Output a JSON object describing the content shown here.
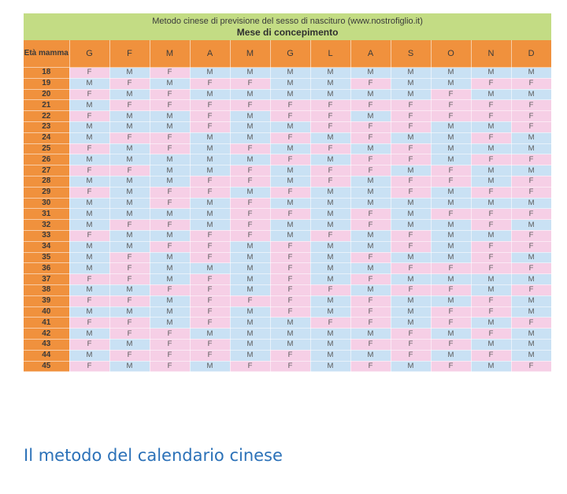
{
  "table": {
    "title": "Metodo cinese di previsione del sesso di nascituro (www.nostrofiglio.it)",
    "subtitle": "Mese di concepimento",
    "age_header": "Età mamma",
    "months": [
      "G",
      "F",
      "M",
      "A",
      "M",
      "G",
      "L",
      "A",
      "S",
      "O",
      "N",
      "D"
    ],
    "rows": [
      {
        "age": "18",
        "cells": [
          "F",
          "M",
          "F",
          "M",
          "M",
          "M",
          "M",
          "M",
          "M",
          "M",
          "M",
          "M"
        ]
      },
      {
        "age": "19",
        "cells": [
          "M",
          "F",
          "M",
          "F",
          "F",
          "M",
          "M",
          "F",
          "M",
          "M",
          "F",
          "F"
        ]
      },
      {
        "age": "20",
        "cells": [
          "F",
          "M",
          "F",
          "M",
          "M",
          "M",
          "M",
          "M",
          "M",
          "F",
          "M",
          "M"
        ]
      },
      {
        "age": "21",
        "cells": [
          "M",
          "F",
          "F",
          "F",
          "F",
          "F",
          "F",
          "F",
          "F",
          "F",
          "F",
          "F"
        ]
      },
      {
        "age": "22",
        "cells": [
          "F",
          "M",
          "M",
          "F",
          "M",
          "F",
          "F",
          "M",
          "F",
          "F",
          "F",
          "F"
        ]
      },
      {
        "age": "23",
        "cells": [
          "M",
          "M",
          "M",
          "F",
          "M",
          "M",
          "F",
          "F",
          "F",
          "M",
          "M",
          "F"
        ]
      },
      {
        "age": "24",
        "cells": [
          "M",
          "F",
          "F",
          "M",
          "M",
          "F",
          "M",
          "F",
          "M",
          "M",
          "F",
          "M"
        ]
      },
      {
        "age": "25",
        "cells": [
          "F",
          "M",
          "F",
          "M",
          "F",
          "M",
          "F",
          "M",
          "F",
          "M",
          "M",
          "M"
        ]
      },
      {
        "age": "26",
        "cells": [
          "M",
          "M",
          "M",
          "M",
          "M",
          "F",
          "M",
          "F",
          "F",
          "M",
          "F",
          "F"
        ]
      },
      {
        "age": "27",
        "cells": [
          "F",
          "F",
          "M",
          "M",
          "F",
          "M",
          "F",
          "F",
          "M",
          "F",
          "M",
          "M"
        ]
      },
      {
        "age": "28",
        "cells": [
          "M",
          "M",
          "M",
          "F",
          "F",
          "M",
          "F",
          "M",
          "F",
          "F",
          "M",
          "F"
        ]
      },
      {
        "age": "29",
        "cells": [
          "F",
          "M",
          "F",
          "F",
          "M",
          "F",
          "M",
          "M",
          "F",
          "M",
          "F",
          "F"
        ]
      },
      {
        "age": "30",
        "cells": [
          "M",
          "M",
          "F",
          "M",
          "F",
          "M",
          "M",
          "M",
          "M",
          "M",
          "M",
          "M"
        ]
      },
      {
        "age": "31",
        "cells": [
          "M",
          "M",
          "M",
          "M",
          "F",
          "F",
          "M",
          "F",
          "M",
          "F",
          "F",
          "F"
        ]
      },
      {
        "age": "32",
        "cells": [
          "M",
          "F",
          "F",
          "M",
          "F",
          "M",
          "M",
          "F",
          "M",
          "M",
          "F",
          "M"
        ]
      },
      {
        "age": "33",
        "cells": [
          "F",
          "M",
          "M",
          "F",
          "F",
          "M",
          "F",
          "M",
          "F",
          "M",
          "M",
          "F"
        ]
      },
      {
        "age": "34",
        "cells": [
          "M",
          "M",
          "F",
          "F",
          "M",
          "F",
          "M",
          "M",
          "F",
          "M",
          "F",
          "F"
        ]
      },
      {
        "age": "35",
        "cells": [
          "M",
          "F",
          "M",
          "F",
          "M",
          "F",
          "M",
          "F",
          "M",
          "M",
          "F",
          "M"
        ]
      },
      {
        "age": "36",
        "cells": [
          "M",
          "F",
          "M",
          "M",
          "M",
          "F",
          "M",
          "M",
          "F",
          "F",
          "F",
          "F"
        ]
      },
      {
        "age": "37",
        "cells": [
          "F",
          "F",
          "M",
          "F",
          "M",
          "F",
          "M",
          "F",
          "M",
          "M",
          "M",
          "M"
        ]
      },
      {
        "age": "38",
        "cells": [
          "M",
          "M",
          "F",
          "F",
          "M",
          "F",
          "F",
          "M",
          "F",
          "F",
          "M",
          "F"
        ]
      },
      {
        "age": "39",
        "cells": [
          "F",
          "F",
          "M",
          "F",
          "F",
          "F",
          "M",
          "F",
          "M",
          "M",
          "F",
          "M"
        ]
      },
      {
        "age": "40",
        "cells": [
          "M",
          "M",
          "M",
          "F",
          "M",
          "F",
          "M",
          "F",
          "M",
          "F",
          "F",
          "M"
        ]
      },
      {
        "age": "41",
        "cells": [
          "F",
          "F",
          "M",
          "F",
          "M",
          "M",
          "F",
          "F",
          "M",
          "F",
          "M",
          "F"
        ]
      },
      {
        "age": "42",
        "cells": [
          "M",
          "F",
          "F",
          "M",
          "M",
          "M",
          "M",
          "M",
          "F",
          "M",
          "F",
          "M"
        ]
      },
      {
        "age": "43",
        "cells": [
          "F",
          "M",
          "F",
          "F",
          "M",
          "M",
          "M",
          "F",
          "F",
          "F",
          "M",
          "M"
        ]
      },
      {
        "age": "44",
        "cells": [
          "M",
          "F",
          "F",
          "F",
          "M",
          "F",
          "M",
          "M",
          "F",
          "M",
          "F",
          "M"
        ]
      },
      {
        "age": "45",
        "cells": [
          "F",
          "M",
          "F",
          "M",
          "F",
          "F",
          "M",
          "F",
          "M",
          "F",
          "M",
          "F"
        ]
      }
    ]
  },
  "caption": "Il metodo del calendario cinese"
}
